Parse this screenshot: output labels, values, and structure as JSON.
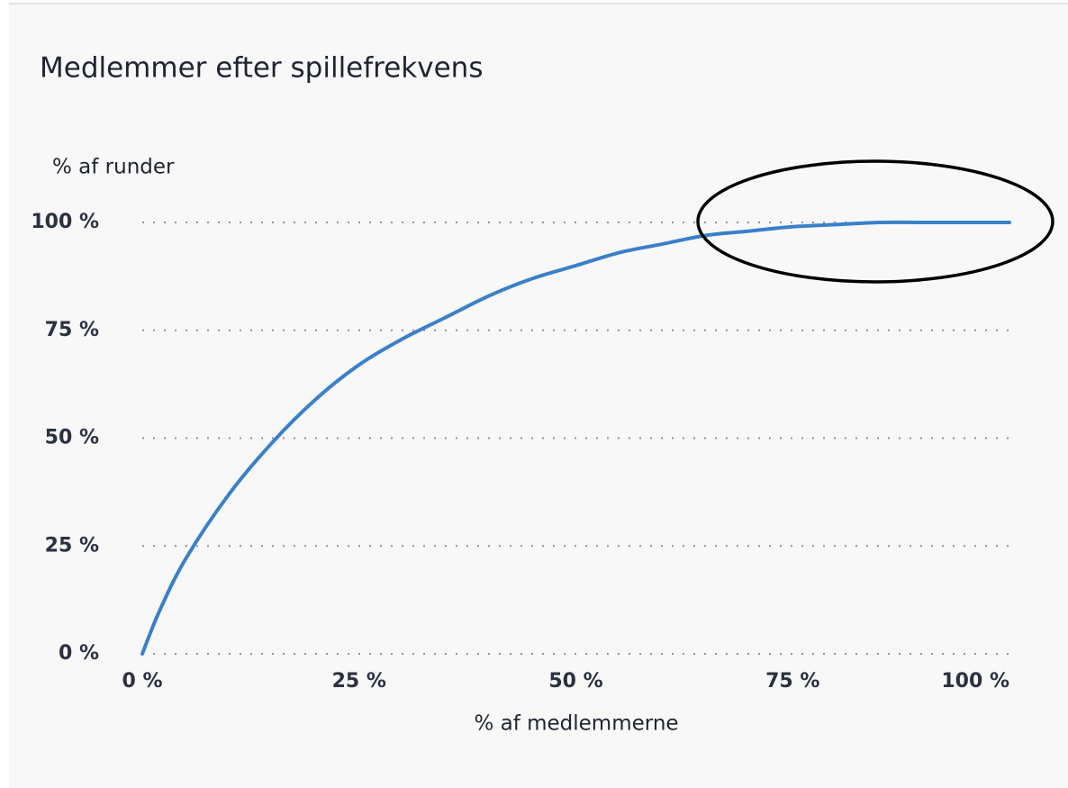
{
  "chart_data": {
    "type": "line",
    "title": "Medlemmer efter spillefrekvens",
    "y_label": "% af runder",
    "x_label": "% af medlemmerne",
    "x": [
      0,
      2,
      5,
      10,
      15,
      20,
      25,
      30,
      35,
      40,
      45,
      50,
      55,
      60,
      65,
      70,
      75,
      80,
      85,
      90,
      95,
      100
    ],
    "values": [
      0,
      10,
      22,
      37,
      49,
      59,
      67,
      73,
      78,
      83,
      87,
      90,
      93,
      95,
      97,
      98,
      99,
      99.5,
      100,
      100,
      100,
      100
    ],
    "color": "#3a80c9",
    "xlim": [
      0,
      100
    ],
    "xticks": [
      {
        "value": 0,
        "label": "0 %"
      },
      {
        "value": 25,
        "label": "25 %"
      },
      {
        "value": 50,
        "label": "50 %"
      },
      {
        "value": 75,
        "label": "75 %"
      },
      {
        "value": 100,
        "label": "100 %"
      }
    ],
    "ylim": [
      0,
      100
    ],
    "yticks": [
      {
        "value": 0,
        "label": "0 %"
      },
      {
        "value": 25,
        "label": "25 %"
      },
      {
        "value": 50,
        "label": "50 %"
      },
      {
        "value": 75,
        "label": "75 %"
      },
      {
        "value": 100,
        "label": "100 %"
      }
    ],
    "grid": true
  }
}
